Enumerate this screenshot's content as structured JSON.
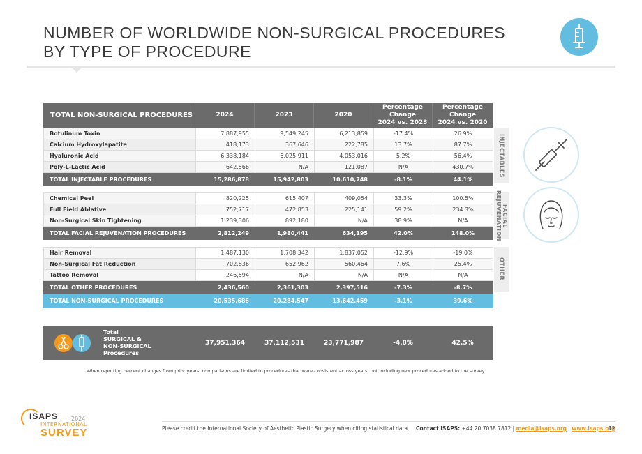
{
  "title_line1": "NUMBER OF WORLDWIDE NON-SURGICAL PROCEDURES",
  "title_line2": "BY TYPE OF PROCEDURE",
  "header": {
    "first": "TOTAL NON-SURGICAL PROCEDURES",
    "c2024": "2024",
    "c2023": "2023",
    "c2020": "2020",
    "pct1_line1": "Percentage Change",
    "pct1_line2": "2024 vs. 2023",
    "pct2_line1": "Percentage Change",
    "pct2_line2": "2024 vs. 2020"
  },
  "injectables": {
    "side_label": "INJECTABLES",
    "rows": [
      {
        "name": "Botulinum Toxin",
        "y2024": "7,887,955",
        "y2023": "9,549,245",
        "y2020": "6,213,859",
        "p1": "-17.4%",
        "p2": "26.9%"
      },
      {
        "name": "Calcium Hydroxylapatite",
        "y2024": "418,173",
        "y2023": "367,646",
        "y2020": "222,785",
        "p1": "13.7%",
        "p2": "87.7%"
      },
      {
        "name": "Hyaluronic Acid",
        "y2024": "6,338,184",
        "y2023": "6,025,911",
        "y2020": "4,053,016",
        "p1": "5.2%",
        "p2": "56.4%"
      },
      {
        "name": "Poly-L-Lactic Acid",
        "y2024": "642,566",
        "y2023": "N/A",
        "y2020": "121,087",
        "p1": "N/A",
        "p2": "430.7%"
      }
    ],
    "total": {
      "name": "TOTAL INJECTABLE PROCEDURES",
      "y2024": "15,286,878",
      "y2023": "15,942,803",
      "y2020": "10,610,748",
      "p1": "-8.1%",
      "p2": "44.1%"
    }
  },
  "facial": {
    "side_label_line1": "FACIAL",
    "side_label_line2": "REJUVENATION",
    "rows": [
      {
        "name": "Chemical Peel",
        "y2024": "820,225",
        "y2023": "615,407",
        "y2020": "409,054",
        "p1": "33.3%",
        "p2": "100.5%"
      },
      {
        "name": "Full Field Ablative",
        "y2024": "752,717",
        "y2023": "472,853",
        "y2020": "225,141",
        "p1": "59.2%",
        "p2": "234.3%"
      },
      {
        "name": "Non-Surgical Skin Tightening",
        "y2024": "1,239,306",
        "y2023": "892,180",
        "y2020": "N/A",
        "p1": "38.9%",
        "p2": "N/A"
      }
    ],
    "total": {
      "name": "TOTAL FACIAL REJUVENATION PROCEDURES",
      "y2024": "2,812,249",
      "y2023": "1,980,441",
      "y2020": "634,195",
      "p1": "42.0%",
      "p2": "148.0%"
    }
  },
  "other": {
    "side_label": "OTHER",
    "rows": [
      {
        "name": "Hair Removal",
        "y2024": "1,487,130",
        "y2023": "1,708,342",
        "y2020": "1,837,052",
        "p1": "-12.9%",
        "p2": "-19.0%"
      },
      {
        "name": "Non-Surgical Fat Reduction",
        "y2024": "702,836",
        "y2023": "652,962",
        "y2020": "560,464",
        "p1": "7.6%",
        "p2": "25.4%"
      },
      {
        "name": "Tattoo Removal",
        "y2024": "246,594",
        "y2023": "N/A",
        "y2020": "N/A",
        "p1": "N/A",
        "p2": "N/A"
      }
    ],
    "total": {
      "name": "TOTAL OTHER PROCEDURES",
      "y2024": "2,436,560",
      "y2023": "2,361,303",
      "y2020": "2,397,516",
      "p1": "-7.3%",
      "p2": "-8.7%"
    }
  },
  "grand_total": {
    "name": "TOTAL NON-SURGICAL PROCEDURES",
    "y2024": "20,535,686",
    "y2023": "20,284,547",
    "y2020": "13,642,459",
    "p1": "-3.1%",
    "p2": "39.6%"
  },
  "combined": {
    "label_line1": "Total",
    "label_line2": "SURGICAL  &",
    "label_line3": "NON-SURGICAL",
    "label_line4": "Procedures",
    "y2024": "37,951,364",
    "y2023": "37,112,531",
    "y2020": "23,771,987",
    "p1": "-4.8%",
    "p2": "42.5%"
  },
  "footnote": "When reporting percent changes from prior years, comparisons are limited to procedures that were consistent across years, not including new procedures added to the survey.",
  "footer": {
    "credit": "Please credit the International Society of Aesthetic Plastic Surgery when citing statistical data.",
    "contact_label": "Contact ISAPS:",
    "phone": "+44 20 7038 7812 |",
    "email": "media@isaps.org",
    "sep": "|",
    "site": "www.isaps.org",
    "page": "12"
  },
  "logo": {
    "name": "ISAPS",
    "year": "2024",
    "line1": "INTERNATIONAL",
    "line2": "SURVEY"
  },
  "colors": {
    "accent_blue": "#62bde0",
    "dark_gray": "#6b6b6b",
    "orange": "#f39a1e"
  }
}
